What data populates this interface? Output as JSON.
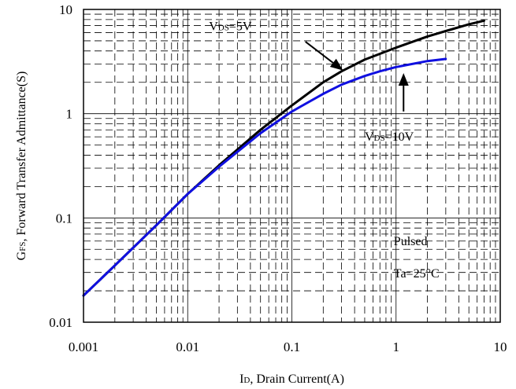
{
  "chart_data": {
    "type": "line",
    "xscale": "log",
    "yscale": "log",
    "xlim": [
      0.001,
      10
    ],
    "ylim": [
      0.01,
      10
    ],
    "grid": true,
    "x_ticks": [
      {
        "value": 0.001,
        "label": "0.001"
      },
      {
        "value": 0.01,
        "label": "0.01"
      },
      {
        "value": 0.1,
        "label": "0.1"
      },
      {
        "value": 1,
        "label": "1"
      },
      {
        "value": 10,
        "label": "10"
      }
    ],
    "y_ticks": [
      {
        "value": 0.01,
        "label": "0.01"
      },
      {
        "value": 0.1,
        "label": "0.1"
      },
      {
        "value": 1,
        "label": "1"
      },
      {
        "value": 10,
        "label": "10"
      }
    ],
    "xlabel": {
      "sym": "I",
      "sub": "D",
      "rest": ", Drain Current(A)"
    },
    "ylabel": {
      "sym": "G",
      "sub": "FS",
      "rest": ", Forward Transfer Admittance(S)"
    },
    "series": [
      {
        "name_sym": "V",
        "name_sub": "DS",
        "name_rest": "=5V",
        "color": "#000000",
        "x": [
          0.001,
          0.002,
          0.005,
          0.01,
          0.02,
          0.05,
          0.1,
          0.2,
          0.3,
          0.5,
          1,
          2,
          3,
          5,
          7
        ],
        "y": [
          0.018,
          0.035,
          0.085,
          0.17,
          0.32,
          0.7,
          1.2,
          2.0,
          2.55,
          3.3,
          4.3,
          5.5,
          6.2,
          7.2,
          7.8
        ]
      },
      {
        "name_sym": "V",
        "name_sub": "DS",
        "name_rest": "=10V",
        "color": "#1010e0",
        "x": [
          0.001,
          0.002,
          0.005,
          0.01,
          0.02,
          0.05,
          0.1,
          0.2,
          0.3,
          0.5,
          0.7,
          1,
          2,
          3
        ],
        "y": [
          0.018,
          0.035,
          0.085,
          0.17,
          0.31,
          0.65,
          1.05,
          1.55,
          1.9,
          2.3,
          2.55,
          2.8,
          3.2,
          3.35
        ]
      }
    ],
    "annotations": {
      "pulsed": "Pulsed",
      "temp": "Ta=25°C"
    }
  }
}
